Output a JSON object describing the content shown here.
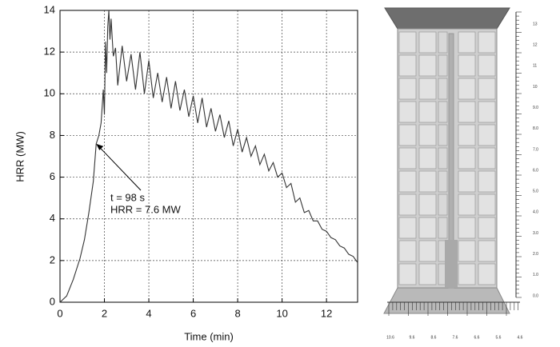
{
  "chart_data": {
    "type": "line",
    "x_label": "Time (min)",
    "y_label": "HRR (MW)",
    "annotation": [
      "t = 98 s",
      "HRR = 7.6 MW"
    ],
    "xlim": [
      0,
      13.4
    ],
    "xticks": [
      0,
      2,
      4,
      6,
      8,
      10,
      12
    ],
    "ylim": [
      0,
      14
    ],
    "yticks": [
      0,
      2,
      4,
      6,
      8,
      10,
      12,
      14
    ],
    "grid": true,
    "x": [
      0,
      0.3,
      0.6,
      0.9,
      1.1,
      1.3,
      1.5,
      1.63,
      1.75,
      1.85,
      1.95,
      2.0,
      2.05,
      2.1,
      2.15,
      2.2,
      2.25,
      2.3,
      2.4,
      2.5,
      2.6,
      2.8,
      3.0,
      3.2,
      3.4,
      3.6,
      3.8,
      4.0,
      4.2,
      4.4,
      4.6,
      4.8,
      5.0,
      5.2,
      5.4,
      5.6,
      5.8,
      6.0,
      6.2,
      6.4,
      6.6,
      6.8,
      7.0,
      7.2,
      7.4,
      7.6,
      7.8,
      8.0,
      8.2,
      8.4,
      8.6,
      8.8,
      9.0,
      9.2,
      9.4,
      9.6,
      9.8,
      10.0,
      10.2,
      10.4,
      10.6,
      10.8,
      11.0,
      11.2,
      11.4,
      11.6,
      11.8,
      12.0,
      12.2,
      12.4,
      12.6,
      12.8,
      13.0,
      13.2,
      13.4
    ],
    "series": [
      {
        "color": "#333333",
        "values": [
          0,
          0.3,
          1.1,
          2.1,
          3.0,
          4.3,
          5.8,
          7.6,
          8.0,
          8.6,
          10.2,
          9.0,
          12.5,
          11.0,
          13.2,
          14.0,
          12.6,
          13.6,
          11.8,
          12.2,
          10.4,
          12.3,
          10.6,
          11.9,
          10.2,
          12.0,
          10.0,
          11.6,
          9.8,
          11.0,
          9.6,
          10.8,
          9.3,
          10.6,
          9.2,
          10.2,
          8.9,
          9.9,
          8.6,
          9.8,
          8.4,
          9.3,
          8.2,
          9.0,
          7.9,
          8.7,
          7.5,
          8.3,
          7.2,
          7.9,
          7.0,
          7.5,
          6.6,
          7.1,
          6.3,
          6.7,
          6.0,
          6.2,
          5.5,
          5.7,
          4.8,
          5.0,
          4.3,
          4.4,
          3.9,
          3.9,
          3.5,
          3.4,
          3.1,
          3.0,
          2.7,
          2.6,
          2.3,
          2.2,
          1.9
        ]
      }
    ]
  },
  "render": {
    "height_labels": [
      "13",
      "12",
      "11",
      "10",
      "9.0",
      "8.0",
      "7.0",
      "6.0",
      "5.0",
      "4.0",
      "3.0",
      "2.0",
      "1.0",
      "0.0"
    ],
    "width_labels": [
      "10.6",
      "9.6",
      "8.6",
      "7.6",
      "6.6",
      "5.6",
      "4.6"
    ]
  }
}
